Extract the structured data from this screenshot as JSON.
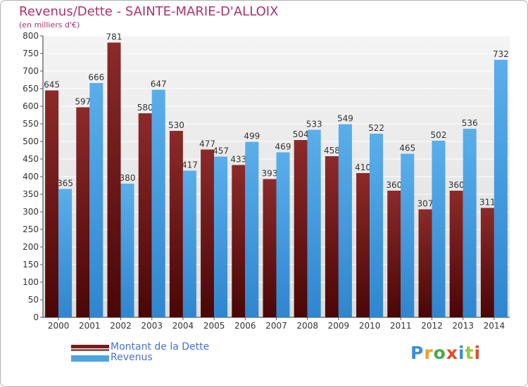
{
  "chart_data": {
    "type": "bar",
    "title": "Revenus/Dette - SAINTE-MARIE-D'ALLOIX",
    "subtitle": "(en milliers d'€)",
    "categories": [
      "2000",
      "2001",
      "2002",
      "2003",
      "2004",
      "2005",
      "2006",
      "2007",
      "2008",
      "2009",
      "2010",
      "2011",
      "2012",
      "2013",
      "2014"
    ],
    "series": [
      {
        "name": "Montant de la Dette",
        "color": "#7a1a1a",
        "values": [
          645,
          597,
          781,
          580,
          530,
          477,
          433,
          393,
          504,
          458,
          410,
          360,
          307,
          360,
          311
        ]
      },
      {
        "name": "Revenus",
        "color": "#4fa3e0",
        "values": [
          365,
          666,
          380,
          647,
          417,
          457,
          499,
          469,
          533,
          549,
          522,
          465,
          502,
          536,
          732
        ]
      }
    ],
    "ylim": [
      0,
      800
    ],
    "yticks": [
      0,
      50,
      100,
      150,
      200,
      250,
      300,
      350,
      400,
      450,
      500,
      550,
      600,
      650,
      700,
      750,
      800
    ],
    "xlabel": "",
    "ylabel": "",
    "grid": true,
    "legend_position": "bottom-left"
  },
  "legend": {
    "debt_label": "Montant de la Dette",
    "revenue_label": "Revenus"
  },
  "logo": {
    "text": "Proxiti"
  }
}
